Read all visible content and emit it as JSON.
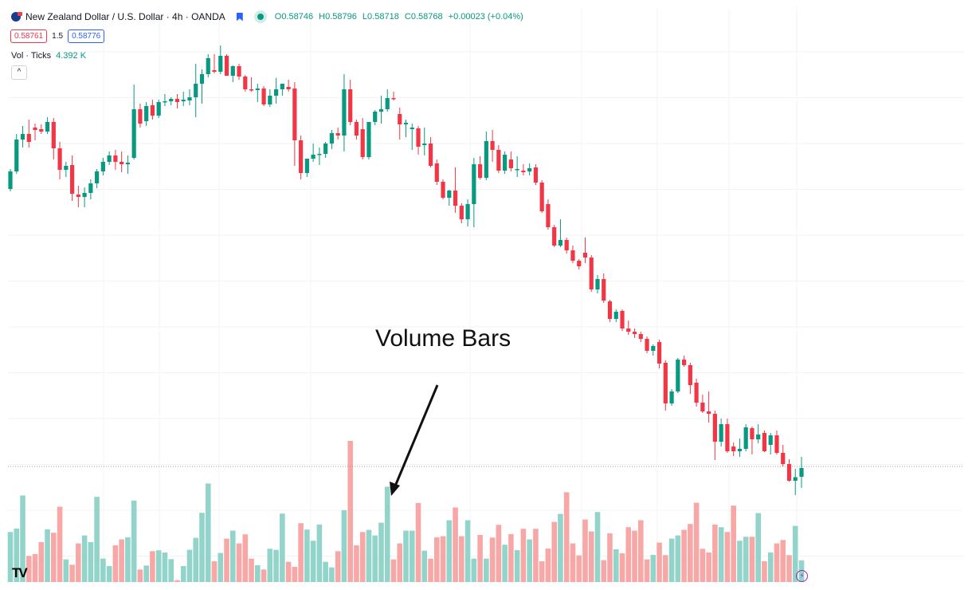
{
  "header": {
    "symbol_title": "New Zealand Dollar / U.S. Dollar · 4h · OANDA",
    "ohlc": {
      "open_label": "O",
      "open": "0.58746",
      "high_label": "H",
      "high": "0.58796",
      "low_label": "L",
      "low": "0.58718",
      "close_label": "C",
      "close": "0.58768",
      "change": "+0.00023 (+0.04%)"
    },
    "sell_price": "0.58761",
    "spread": "1.5",
    "buy_price": "0.58776"
  },
  "volume_legend": {
    "label": "Vol · Ticks",
    "value": "4.392 K"
  },
  "collapse_label": "^",
  "annotation": {
    "text": "Volume Bars"
  },
  "logo_text": "TV",
  "colors": {
    "up": "#089981",
    "down": "#f23645",
    "vol_up": "#92d4ca",
    "vol_down": "#f7a8a6",
    "annotation": "#111111"
  },
  "icons": [
    "flag-icon",
    "bookmark-icon",
    "live-dot-icon",
    "collapse-icon",
    "tradingview-logo-icon",
    "lightning-icon"
  ],
  "chart_data": {
    "type": "candlestick",
    "symbol": "NZDUSD",
    "interval": "4h",
    "current_price": 0.58768,
    "candles_ohlc": [
      [
        0.59468,
        0.59518,
        0.59462,
        0.59512
      ],
      [
        0.59512,
        0.59606,
        0.59506,
        0.59592
      ],
      [
        0.59592,
        0.59626,
        0.59572,
        0.59606
      ],
      [
        0.59606,
        0.59642,
        0.59572,
        0.59586
      ],
      [
        0.59622,
        0.59632,
        0.5959,
        0.59616
      ],
      [
        0.59618,
        0.5963,
        0.59606,
        0.59612
      ],
      [
        0.59612,
        0.59648,
        0.59606,
        0.59636
      ],
      [
        0.59636,
        0.59646,
        0.59542,
        0.5957
      ],
      [
        0.5957,
        0.59586,
        0.59492,
        0.59516
      ],
      [
        0.59516,
        0.59536,
        0.59498,
        0.59526
      ],
      [
        0.59528,
        0.59552,
        0.59438,
        0.59456
      ],
      [
        0.59454,
        0.59476,
        0.59422,
        0.59448
      ],
      [
        0.59448,
        0.59472,
        0.59422,
        0.59458
      ],
      [
        0.59458,
        0.59492,
        0.59442,
        0.59482
      ],
      [
        0.59482,
        0.59518,
        0.5947,
        0.59512
      ],
      [
        0.59512,
        0.59546,
        0.59502,
        0.59536
      ],
      [
        0.59536,
        0.59562,
        0.59528,
        0.59552
      ],
      [
        0.59552,
        0.59566,
        0.59516,
        0.59536
      ],
      [
        0.59536,
        0.59562,
        0.5951,
        0.5953
      ],
      [
        0.5953,
        0.59552,
        0.59506,
        0.59534
      ],
      [
        0.59546,
        0.5973,
        0.59542,
        0.59668
      ],
      [
        0.59668,
        0.59682,
        0.59622,
        0.59632
      ],
      [
        0.59638,
        0.59686,
        0.59626,
        0.59676
      ],
      [
        0.59678,
        0.59692,
        0.59642,
        0.59652
      ],
      [
        0.59652,
        0.59692,
        0.59646,
        0.59686
      ],
      [
        0.59686,
        0.59706,
        0.59676,
        0.59688
      ],
      [
        0.59688,
        0.59698,
        0.59678,
        0.59694
      ],
      [
        0.59694,
        0.59706,
        0.5967,
        0.59686
      ],
      [
        0.59688,
        0.59712,
        0.59676,
        0.59692
      ],
      [
        0.5969,
        0.59718,
        0.59678,
        0.59698
      ],
      [
        0.59698,
        0.59782,
        0.59648,
        0.59732
      ],
      [
        0.59732,
        0.59768,
        0.59682,
        0.59756
      ],
      [
        0.59756,
        0.59806,
        0.59748,
        0.59796
      ],
      [
        0.59766,
        0.59806,
        0.59758,
        0.59762
      ],
      [
        0.59762,
        0.59828,
        0.59756,
        0.59802
      ],
      [
        0.59802,
        0.59806,
        0.59752,
        0.59752
      ],
      [
        0.59752,
        0.59778,
        0.59736,
        0.59776
      ],
      [
        0.59776,
        0.59782,
        0.59742,
        0.5975
      ],
      [
        0.5975,
        0.59754,
        0.59712,
        0.59718
      ],
      [
        0.59718,
        0.59748,
        0.59712,
        0.59716
      ],
      [
        0.59716,
        0.59732,
        0.59686,
        0.5972
      ],
      [
        0.5972,
        0.59726,
        0.59676,
        0.5968
      ],
      [
        0.5968,
        0.59718,
        0.59674,
        0.59702
      ],
      [
        0.59702,
        0.59746,
        0.59682,
        0.59718
      ],
      [
        0.59718,
        0.59732,
        0.59702,
        0.59732
      ],
      [
        0.59724,
        0.59742,
        0.59712,
        0.59718
      ],
      [
        0.5972,
        0.59736,
        0.59526,
        0.5959
      ],
      [
        0.5959,
        0.59602,
        0.59492,
        0.59508
      ],
      [
        0.59508,
        0.59542,
        0.59498,
        0.59544
      ],
      [
        0.59544,
        0.59582,
        0.59536,
        0.59554
      ],
      [
        0.59554,
        0.59572,
        0.59528,
        0.59556
      ],
      [
        0.59556,
        0.59586,
        0.59546,
        0.59582
      ],
      [
        0.59582,
        0.59616,
        0.59568,
        0.59608
      ],
      [
        0.59608,
        0.59622,
        0.59592,
        0.59602
      ],
      [
        0.59602,
        0.59756,
        0.59562,
        0.59718
      ],
      [
        0.59718,
        0.59742,
        0.59628,
        0.59636
      ],
      [
        0.59636,
        0.59642,
        0.59592,
        0.59602
      ],
      [
        0.59618,
        0.59646,
        0.59542,
        0.59548
      ],
      [
        0.59548,
        0.59622,
        0.59542,
        0.59636
      ],
      [
        0.59636,
        0.59666,
        0.59628,
        0.59662
      ],
      [
        0.59662,
        0.59702,
        0.59632,
        0.59668
      ],
      [
        0.59668,
        0.59718,
        0.59662,
        0.59696
      ],
      [
        0.59696,
        0.59712,
        0.5969,
        0.59694
      ],
      [
        0.59656,
        0.59672,
        0.59592,
        0.5963
      ],
      [
        0.5963,
        0.59642,
        0.59598,
        0.59634
      ],
      [
        0.59618,
        0.59632,
        0.59566,
        0.59622
      ],
      [
        0.5962,
        0.59626,
        0.59554,
        0.59574
      ],
      [
        0.59578,
        0.59622,
        0.59552,
        0.59582
      ],
      [
        0.59582,
        0.59598,
        0.59522,
        0.59526
      ],
      [
        0.59532,
        0.59542,
        0.59478,
        0.59486
      ],
      [
        0.59486,
        0.59492,
        0.59442,
        0.59446
      ],
      [
        0.59446,
        0.59466,
        0.59426,
        0.59464
      ],
      [
        0.59464,
        0.59522,
        0.59408,
        0.59426
      ],
      [
        0.59426,
        0.59432,
        0.59382,
        0.59392
      ],
      [
        0.59392,
        0.59442,
        0.59374,
        0.5943
      ],
      [
        0.5943,
        0.59546,
        0.59372,
        0.5953
      ],
      [
        0.5953,
        0.5955,
        0.59492,
        0.59496
      ],
      [
        0.59496,
        0.59612,
        0.5949,
        0.59588
      ],
      [
        0.59588,
        0.59616,
        0.59536,
        0.59566
      ],
      [
        0.59566,
        0.59578,
        0.59508,
        0.59514
      ],
      [
        0.59514,
        0.59562,
        0.59506,
        0.59554
      ],
      [
        0.59542,
        0.59562,
        0.59512,
        0.5952
      ],
      [
        0.59518,
        0.5955,
        0.59498,
        0.59518
      ],
      [
        0.59514,
        0.5953,
        0.59502,
        0.5951
      ],
      [
        0.59512,
        0.59532,
        0.59502,
        0.5952
      ],
      [
        0.59522,
        0.5953,
        0.59478,
        0.59484
      ],
      [
        0.59484,
        0.5949,
        0.59408,
        0.59412
      ],
      [
        0.5943,
        0.59442,
        0.59366,
        0.59372
      ],
      [
        0.59372,
        0.59378,
        0.59322,
        0.59326
      ],
      [
        0.59326,
        0.59392,
        0.59322,
        0.5934
      ],
      [
        0.5934,
        0.59346,
        0.59306,
        0.59314
      ],
      [
        0.59314,
        0.59326,
        0.59282,
        0.59288
      ],
      [
        0.59288,
        0.59292,
        0.59266,
        0.59274
      ],
      [
        0.59308,
        0.59346,
        0.59282,
        0.59296
      ],
      [
        0.59296,
        0.59302,
        0.5921,
        0.59216
      ],
      [
        0.59216,
        0.59252,
        0.59206,
        0.59242
      ],
      [
        0.59242,
        0.59256,
        0.59182,
        0.59188
      ],
      [
        0.59186,
        0.5919,
        0.59134,
        0.59142
      ],
      [
        0.59142,
        0.59166,
        0.59134,
        0.5916
      ],
      [
        0.59162,
        0.59166,
        0.59112,
        0.59118
      ],
      [
        0.59118,
        0.59138,
        0.59102,
        0.5911
      ],
      [
        0.5911,
        0.59118,
        0.59094,
        0.59104
      ],
      [
        0.59104,
        0.5911,
        0.59084,
        0.59092
      ],
      [
        0.59092,
        0.59098,
        0.59056,
        0.59062
      ],
      [
        0.59062,
        0.59078,
        0.5905,
        0.59074
      ],
      [
        0.59084,
        0.5909,
        0.59018,
        0.5903
      ],
      [
        0.59032,
        0.59038,
        0.58912,
        0.5893
      ],
      [
        0.5893,
        0.58966,
        0.58924,
        0.5896
      ],
      [
        0.5896,
        0.59044,
        0.58956,
        0.5904
      ],
      [
        0.5904,
        0.5905,
        0.59022,
        0.59026
      ],
      [
        0.59026,
        0.59032,
        0.58954,
        0.58976
      ],
      [
        0.58982,
        0.58992,
        0.58922,
        0.58932
      ],
      [
        0.58932,
        0.58952,
        0.58906,
        0.5891
      ],
      [
        0.5891,
        0.5896,
        0.58882,
        0.58904
      ],
      [
        0.58904,
        0.58912,
        0.58788,
        0.58834
      ],
      [
        0.58834,
        0.58892,
        0.58822,
        0.58878
      ],
      [
        0.58878,
        0.58892,
        0.58806,
        0.5881
      ],
      [
        0.58822,
        0.58832,
        0.58798,
        0.5881
      ],
      [
        0.5881,
        0.58842,
        0.58796,
        0.58816
      ],
      [
        0.58816,
        0.58878,
        0.5881,
        0.5887
      ],
      [
        0.58868,
        0.58872,
        0.58802,
        0.5884
      ],
      [
        0.5884,
        0.58878,
        0.5883,
        0.58852
      ],
      [
        0.58856,
        0.58862,
        0.58808,
        0.5881
      ],
      [
        0.58826,
        0.58856,
        0.58802,
        0.5885
      ],
      [
        0.5885,
        0.58862,
        0.58802,
        0.58806
      ],
      [
        0.58806,
        0.58826,
        0.58772,
        0.58778
      ],
      [
        0.58778,
        0.5879,
        0.58734,
        0.58736
      ],
      [
        0.58736,
        0.58766,
        0.587,
        0.58745
      ],
      [
        0.58746,
        0.58796,
        0.58718,
        0.58768
      ]
    ],
    "volume_ticks": [
      10150,
      10850,
      17550,
      5290,
      5670,
      8100,
      10690,
      9990,
      15280,
      4590,
      3510,
      7830,
      9450,
      8100,
      17280,
      4750,
      3240,
      7450,
      8640,
      9070,
      16520,
      2540,
      3350,
      6260,
      6430,
      5990,
      4640,
      380,
      3240,
      6530,
      8960,
      14040,
      19980,
      4210,
      5890,
      8800,
      10420,
      7830,
      9670,
      4750,
      3400,
      2540,
      6750,
      6530,
      13880,
      4100,
      3080,
      11930,
      10640,
      8370,
      11660,
      4100,
      2970,
      6260,
      14580,
      28620,
      7450,
      10150,
      10580,
      9450,
      12040,
      19330,
      4590,
      7830,
      10420,
      10420,
      16040,
      6370,
      4750,
      9070,
      9290,
      12530,
      15120,
      9290,
      12530,
      4750,
      9560,
      4750,
      9020,
      11610,
      7560,
      9720,
      6480,
      10800,
      8640,
      10800,
      4210,
      6800,
      12200,
      13820,
      18200,
      7830,
      5400,
      12690,
      10260,
      14200,
      4430,
      9880,
      6640,
      5830,
      11120,
      10420,
      12530,
      4590,
      5510,
      7990,
      5450,
      8800,
      9450,
      10580,
      11770,
      16090,
      6750,
      5990,
      11660,
      11120,
      10150,
      15500,
      8370,
      9180,
      9180,
      13990,
      4210,
      5990,
      7830,
      8530,
      5450,
      11390,
      4392
    ],
    "grid": true
  }
}
